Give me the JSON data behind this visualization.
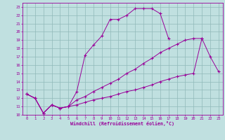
{
  "xlabel": "Windchill (Refroidissement éolien,°C)",
  "bg_color": "#c0e0e0",
  "grid_color": "#90b8b8",
  "line_color": "#990099",
  "xlim": [
    -0.5,
    23.5
  ],
  "ylim": [
    10,
    23.5
  ],
  "xticks": [
    0,
    1,
    2,
    3,
    4,
    5,
    6,
    7,
    8,
    9,
    10,
    11,
    12,
    13,
    14,
    15,
    16,
    17,
    18,
    19,
    20,
    21,
    22,
    23
  ],
  "yticks": [
    10,
    11,
    12,
    13,
    14,
    15,
    16,
    17,
    18,
    19,
    20,
    21,
    22,
    23
  ],
  "line1_x": [
    0,
    1,
    2,
    3,
    4,
    5,
    6,
    7,
    8,
    9,
    10,
    11,
    12,
    13,
    14,
    15,
    16,
    17
  ],
  "line1_y": [
    12.5,
    12.0,
    10.2,
    11.2,
    10.8,
    11.0,
    12.8,
    17.2,
    18.4,
    19.5,
    21.5,
    21.5,
    22.0,
    22.8,
    22.8,
    22.8,
    22.2,
    19.2
  ],
  "line2_x": [
    0,
    1,
    2,
    3,
    4,
    5,
    6,
    7,
    8,
    9,
    10,
    11,
    12,
    13,
    14,
    15,
    16,
    17,
    18,
    19,
    20,
    21
  ],
  "line2_y": [
    12.5,
    12.0,
    10.2,
    11.2,
    10.8,
    11.0,
    11.8,
    12.2,
    12.8,
    13.3,
    13.8,
    14.3,
    15.0,
    15.5,
    16.2,
    16.8,
    17.5,
    18.0,
    18.5,
    19.0,
    19.2,
    19.2
  ],
  "line3_x": [
    0,
    1,
    2,
    3,
    4,
    5,
    6,
    7,
    8,
    9,
    10,
    11,
    12,
    13,
    14,
    15,
    16,
    17,
    18,
    19,
    20,
    21,
    22,
    23
  ],
  "line3_y": [
    12.5,
    12.0,
    10.2,
    11.2,
    10.8,
    11.0,
    11.2,
    11.5,
    11.8,
    12.0,
    12.2,
    12.5,
    12.8,
    13.0,
    13.3,
    13.6,
    14.0,
    14.3,
    14.6,
    14.8,
    15.0,
    19.2,
    17.0,
    15.2
  ]
}
